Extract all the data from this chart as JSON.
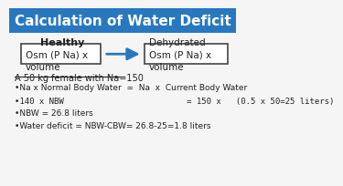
{
  "title": "Calculation of Water Deficit",
  "title_bg": "#2878c0",
  "title_color": "#ffffff",
  "bg_color": "#f5f5f5",
  "healthy_label": "Healthy",
  "dehydrated_label": "Dehydrated",
  "box1_text": "Osm (P Na) x\nvolume",
  "box2_text": "Osm (P Na) x\nvolume",
  "arrow_color": "#2878c0",
  "box_edge_color": "#444444",
  "underline_text": "A 50 kg female with Na=150",
  "bullet1": "•Na x Normal Body Water  =  Na  x  Current Body Water",
  "bullet2": "•140 x NBW                         = 150 x   (0.5 x 50=25 liters)",
  "bullet3": "•NBW = 26.8 liters",
  "bullet4": "•Water deficit = NBW-CBW= 26.8-25=1.8 liters",
  "text_color": "#222222"
}
